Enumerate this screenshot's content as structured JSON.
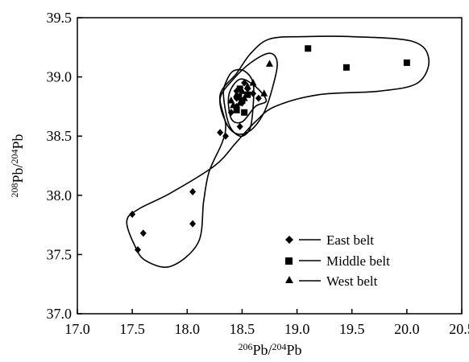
{
  "chart_data": {
    "type": "scatter",
    "xlabel": {
      "pre": "206",
      "post": "Pb/",
      "pre2": "204",
      "post2": "Pb"
    },
    "ylabel": {
      "pre": "208",
      "post": "Pb/",
      "pre2": "204",
      "post2": "Pb"
    },
    "xlim": [
      17.0,
      20.5
    ],
    "ylim": [
      37.0,
      39.5
    ],
    "xticks": [
      "17.0",
      "17.5",
      "18.0",
      "18.5",
      "19.0",
      "19.5",
      "20.0",
      "20.5"
    ],
    "yticks": [
      "37.0",
      "37.5",
      "38.0",
      "38.5",
      "39.0",
      "39.5"
    ],
    "grid": false,
    "legend_position": "bottom-right",
    "series": [
      {
        "name": "East belt",
        "marker": "diamond",
        "points": [
          [
            17.5,
            37.84
          ],
          [
            17.6,
            37.68
          ],
          [
            17.55,
            37.54
          ],
          [
            18.05,
            38.03
          ],
          [
            18.05,
            37.76
          ],
          [
            18.3,
            38.53
          ],
          [
            18.35,
            38.5
          ],
          [
            18.4,
            38.7
          ],
          [
            18.45,
            38.75
          ],
          [
            18.45,
            38.82
          ],
          [
            18.5,
            38.78
          ],
          [
            18.48,
            38.58
          ],
          [
            18.55,
            38.9
          ],
          [
            18.6,
            38.86
          ],
          [
            18.65,
            38.82
          ],
          [
            18.45,
            38.88
          ],
          [
            18.52,
            38.95
          ]
        ]
      },
      {
        "name": "Middle belt",
        "marker": "square",
        "points": [
          [
            19.1,
            39.24
          ],
          [
            19.45,
            39.08
          ],
          [
            20.0,
            39.12
          ],
          [
            18.45,
            38.72
          ],
          [
            18.5,
            38.8
          ],
          [
            18.55,
            38.85
          ],
          [
            18.48,
            38.9
          ],
          [
            18.52,
            38.7
          ],
          [
            18.47,
            38.83
          ]
        ]
      },
      {
        "name": "West belt",
        "marker": "triangle",
        "points": [
          [
            18.75,
            39.11
          ],
          [
            18.7,
            38.86
          ],
          [
            18.6,
            38.95
          ],
          [
            18.55,
            38.92
          ],
          [
            18.5,
            38.88
          ],
          [
            18.45,
            38.85
          ],
          [
            18.48,
            38.78
          ],
          [
            18.4,
            38.8
          ],
          [
            18.52,
            38.82
          ],
          [
            18.42,
            38.76
          ]
        ]
      }
    ],
    "outlines": [
      {
        "name": "outline-1",
        "points": [
          [
            17.45,
            37.78
          ],
          [
            17.52,
            37.58
          ],
          [
            17.62,
            37.45
          ],
          [
            17.85,
            37.4
          ],
          [
            18.1,
            37.6
          ],
          [
            18.15,
            37.95
          ],
          [
            18.2,
            38.2
          ],
          [
            18.32,
            38.45
          ],
          [
            18.35,
            38.6
          ],
          [
            18.3,
            38.85
          ],
          [
            18.45,
            39.03
          ],
          [
            18.58,
            39.2
          ],
          [
            18.75,
            39.32
          ],
          [
            19.05,
            39.34
          ],
          [
            19.5,
            39.34
          ],
          [
            20.05,
            39.3
          ],
          [
            20.2,
            39.15
          ],
          [
            20.1,
            38.95
          ],
          [
            19.75,
            38.88
          ],
          [
            19.2,
            38.85
          ],
          [
            18.8,
            38.75
          ],
          [
            18.62,
            38.62
          ],
          [
            18.45,
            38.45
          ],
          [
            18.25,
            38.25
          ],
          [
            17.85,
            38.02
          ],
          [
            17.55,
            37.88
          ]
        ]
      },
      {
        "name": "outline-2",
        "points": [
          [
            18.3,
            38.82
          ],
          [
            18.35,
            38.62
          ],
          [
            18.45,
            38.52
          ],
          [
            18.58,
            38.55
          ],
          [
            18.7,
            38.7
          ],
          [
            18.78,
            38.92
          ],
          [
            18.82,
            39.12
          ],
          [
            18.75,
            39.2
          ],
          [
            18.58,
            39.12
          ],
          [
            18.42,
            38.98
          ]
        ]
      },
      {
        "name": "outline-3",
        "points": [
          [
            18.33,
            38.85
          ],
          [
            18.38,
            38.6
          ],
          [
            18.48,
            38.5
          ],
          [
            18.57,
            38.56
          ],
          [
            18.6,
            38.75
          ],
          [
            18.6,
            38.95
          ],
          [
            18.52,
            39.05
          ],
          [
            18.42,
            39.05
          ],
          [
            18.36,
            38.97
          ]
        ]
      },
      {
        "name": "outline-4",
        "points": [
          [
            18.4,
            38.65
          ],
          [
            18.5,
            38.62
          ],
          [
            18.62,
            38.75
          ],
          [
            18.72,
            38.8
          ],
          [
            18.62,
            38.92
          ],
          [
            18.48,
            38.98
          ],
          [
            18.38,
            38.85
          ]
        ]
      }
    ]
  }
}
